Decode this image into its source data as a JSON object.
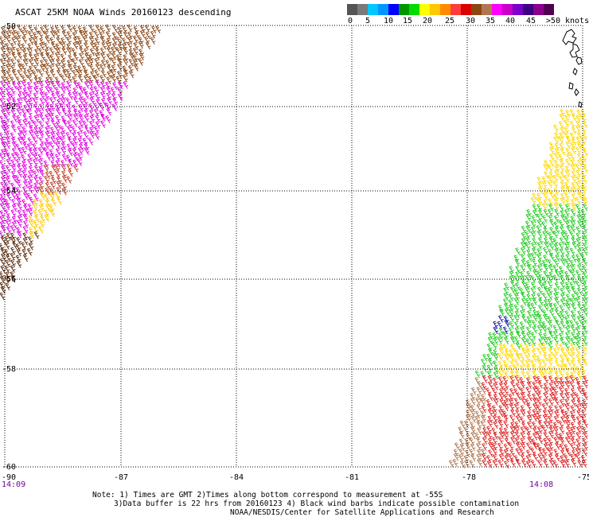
{
  "title": "ASCAT 25KM NOAA Winds 20160123 descending",
  "legend": {
    "colors": [
      "#555555",
      "#7a7a7a",
      "#00c8ff",
      "#0096ff",
      "#0000ff",
      "#009600",
      "#00dc00",
      "#ffff00",
      "#ffc800",
      "#ff8c00",
      "#ff3c3c",
      "#dc0000",
      "#8b4513",
      "#b07850",
      "#ff00ff",
      "#c800c8",
      "#7800c8",
      "#3c0080",
      "#8b008b",
      "#500050"
    ],
    "labels": [
      "0",
      "5",
      "10",
      "15",
      "20",
      "25",
      "30",
      "35",
      "40",
      "45",
      ">50 knots"
    ]
  },
  "lat_labels": [
    "-50",
    "-52",
    "-54",
    "-56",
    "-58",
    "-60"
  ],
  "lon_labels": [
    "-87",
    "-84",
    "-81",
    "-78",
    "-75"
  ],
  "corner_left_lon": "-90",
  "time_left": "14:09",
  "time_right": "14:08",
  "notes": {
    "line1": "Note: 1) Times are GMT 2)Times along bottom correspond to measurement at -55S",
    "line2": "3)Data buffer is 22 hrs from 20160123 4) Black wind barbs indicate possible contamination",
    "line3": "NOAA/NESDIS/Center for Satellite Applications and Research"
  }
}
